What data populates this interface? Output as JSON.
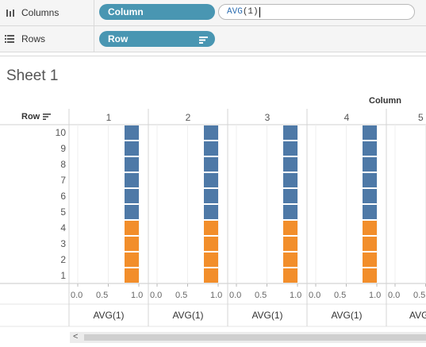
{
  "columns_shelf": {
    "label": "Columns",
    "pill": "Column",
    "calc_fn": "AVG",
    "calc_arg": "(1)"
  },
  "rows_shelf": {
    "label": "Rows",
    "pill": "Row"
  },
  "sheet": {
    "title": "Sheet 1",
    "column_field_title": "Column",
    "row_field_title": "Row",
    "column_headers": [
      "1",
      "2",
      "3",
      "4",
      "5"
    ],
    "row_labels": [
      "10",
      "9",
      "8",
      "7",
      "6",
      "5",
      "4",
      "3",
      "2",
      "1"
    ],
    "axis_ticks": [
      "0.0",
      "0.5",
      "1.0"
    ],
    "axis_title": "AVG(1)",
    "scroll_left_arrow": "<"
  },
  "chart_data": {
    "type": "bar",
    "orientation": "horizontal",
    "panes": [
      "1",
      "2",
      "3",
      "4",
      "5"
    ],
    "rows": [
      "1",
      "2",
      "3",
      "4",
      "5",
      "6",
      "7",
      "8",
      "9",
      "10"
    ],
    "values": [
      1,
      1,
      1,
      1,
      1,
      1,
      1,
      1,
      1,
      1
    ],
    "xlim": [
      0,
      1
    ],
    "colors": {
      "rows_1_to_4": "#f28e2b",
      "rows_5_to_10": "#4e79a7"
    },
    "axis_title": "AVG(1)"
  }
}
